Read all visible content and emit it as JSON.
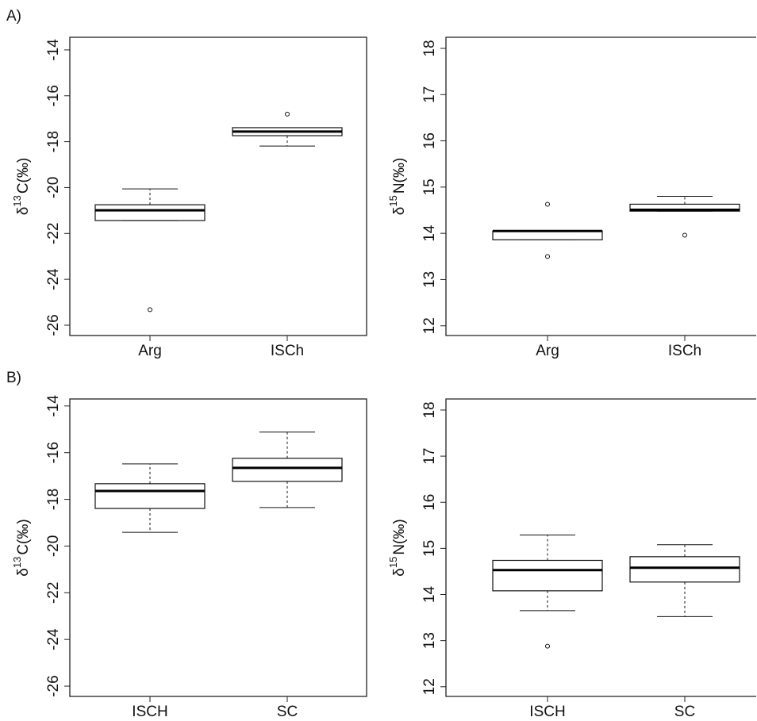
{
  "chart_data": [
    {
      "type": "box",
      "panel": "A)",
      "ylabel": {
        "prefix": "δ",
        "sup": "13",
        "main": "C(‰)"
      },
      "categories": [
        "Arg",
        "ISCh"
      ],
      "boxes": [
        {
          "whisker_low": -21.44,
          "q1": -21.44,
          "median": -20.99,
          "q3": -20.75,
          "whisker_high": -20.06,
          "outliers": [
            -25.32
          ]
        },
        {
          "whisker_low": -18.19,
          "q1": -17.74,
          "median": -17.56,
          "q3": -17.39,
          "whisker_high": -17.39,
          "outliers": [
            -16.8
          ]
        }
      ],
      "ylim": [
        -26.45,
        -13.45
      ],
      "yticks": [
        -26,
        -24,
        -22,
        -20,
        -18,
        -16,
        -14
      ]
    },
    {
      "type": "box",
      "ylabel": {
        "prefix": "δ",
        "sup": "15",
        "main": "N(‰)"
      },
      "categories": [
        "Arg",
        "ISCh"
      ],
      "boxes": [
        {
          "whisker_low": 13.86,
          "q1": 13.86,
          "median": 14.05,
          "q3": 14.05,
          "whisker_high": 14.05,
          "outliers": [
            14.63,
            13.5
          ]
        },
        {
          "whisker_low": 14.48,
          "q1": 14.48,
          "median": 14.51,
          "q3": 14.63,
          "whisker_high": 14.8,
          "outliers": [
            13.96
          ]
        }
      ],
      "ylim": [
        11.79,
        18.24
      ],
      "yticks": [
        12,
        13,
        14,
        15,
        16,
        17,
        18
      ]
    },
    {
      "type": "box",
      "panel": "B)",
      "ylabel": {
        "prefix": "δ",
        "sup": "13",
        "main": "C(‰)"
      },
      "categories": [
        "ISCH",
        "SC"
      ],
      "boxes": [
        {
          "whisker_low": -19.41,
          "q1": -18.39,
          "median": -17.64,
          "q3": -17.33,
          "whisker_high": -16.48,
          "outliers": []
        },
        {
          "whisker_low": -18.35,
          "q1": -17.23,
          "median": -16.65,
          "q3": -16.24,
          "whisker_high": -15.12,
          "outliers": []
        }
      ],
      "ylim": [
        -26.44,
        -13.7
      ],
      "yticks": [
        -26,
        -24,
        -22,
        -20,
        -18,
        -16,
        -14
      ]
    },
    {
      "type": "box",
      "ylabel": {
        "prefix": "δ",
        "sup": "15",
        "main": "N(‰)"
      },
      "categories": [
        "ISCH",
        "SC"
      ],
      "boxes": [
        {
          "whisker_low": 13.65,
          "q1": 14.08,
          "median": 14.53,
          "q3": 14.74,
          "whisker_high": 15.29,
          "outliers": [
            12.88
          ]
        },
        {
          "whisker_low": 13.52,
          "q1": 14.27,
          "median": 14.58,
          "q3": 14.82,
          "whisker_high": 15.08,
          "outliers": []
        }
      ],
      "ylim": [
        11.79,
        18.24
      ],
      "yticks": [
        12,
        13,
        14,
        15,
        16,
        17,
        18
      ]
    }
  ]
}
